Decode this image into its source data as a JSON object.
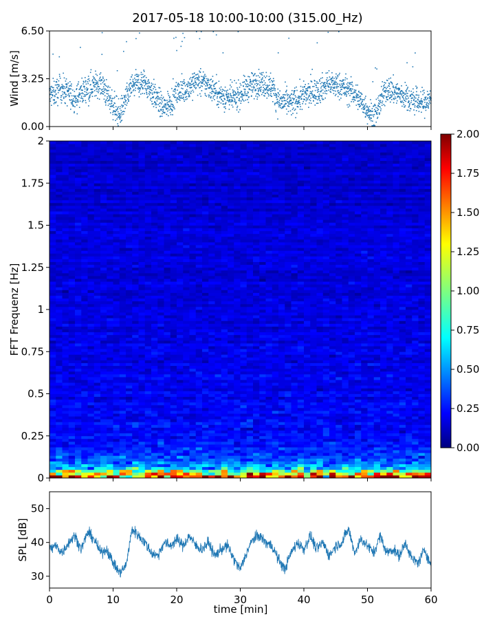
{
  "title": "2017-05-18 10:00-10:00 (315.00_Hz)",
  "colors": {
    "series": "#1f77b4",
    "axes": "#000000",
    "colormap": [
      "#00007f",
      "#0000ff",
      "#007fff",
      "#00ffff",
      "#7fff7f",
      "#ffff00",
      "#ff7f00",
      "#ff0000",
      "#7f0000"
    ]
  },
  "chart_data": [
    {
      "type": "scatter",
      "ylabel": "Wind [m/s]",
      "xlim": [
        0,
        60
      ],
      "ylim": [
        0,
        6.5
      ],
      "yticks": [
        0.0,
        3.25,
        6.5
      ],
      "ytick_labels": [
        "0.00",
        "3.25",
        "6.50"
      ],
      "xticks": [
        0,
        10,
        20,
        30,
        40,
        50,
        60
      ],
      "series": [
        {
          "x": [
            0,
            2,
            4,
            6,
            8,
            10,
            11,
            13,
            15,
            17,
            18,
            20,
            22,
            23,
            25,
            27,
            29,
            31,
            33,
            35,
            36,
            38,
            40,
            42,
            44,
            46,
            48,
            50,
            51,
            53,
            55,
            57,
            59,
            60
          ],
          "y": [
            2.1,
            2.6,
            1.9,
            2.7,
            2.9,
            1.5,
            0.8,
            2.8,
            3.0,
            1.8,
            1.2,
            2.2,
            2.7,
            3.1,
            2.8,
            2.1,
            1.9,
            2.6,
            3.0,
            2.7,
            1.7,
            1.6,
            2.1,
            2.4,
            2.9,
            2.7,
            2.2,
            1.2,
            0.6,
            2.6,
            2.2,
            1.8,
            1.6,
            1.9
          ]
        }
      ]
    },
    {
      "type": "heatmap",
      "ylabel": "FFT Frequenz [Hz]",
      "xlim": [
        0,
        60
      ],
      "ylim": [
        0,
        2
      ],
      "yticks": [
        0,
        0.25,
        0.5,
        0.75,
        1,
        1.25,
        1.5,
        1.75,
        2
      ],
      "ytick_labels": [
        "0",
        "0.25",
        "0.5",
        "0.75",
        "1",
        "1.25",
        "1.5",
        "1.75",
        "2"
      ],
      "xticks": [
        0,
        10,
        20,
        30,
        40,
        50,
        60
      ],
      "colorbar": {
        "range": [
          0,
          2
        ],
        "ticks": [
          0.0,
          0.25,
          0.5,
          0.75,
          1.0,
          1.25,
          1.5,
          1.75,
          2.0
        ],
        "tick_labels": [
          "0.00",
          "0.25",
          "0.50",
          "0.75",
          "1.00",
          "1.25",
          "1.50",
          "1.75",
          "2.00"
        ]
      },
      "freq_profile": {
        "freq": [
          0.0,
          0.02,
          0.05,
          0.08,
          0.1,
          0.15,
          0.25,
          0.5,
          1.0,
          1.5,
          2.0
        ],
        "mean_value": [
          1.8,
          1.2,
          0.75,
          0.5,
          0.42,
          0.33,
          0.26,
          0.22,
          0.19,
          0.17,
          0.15
        ]
      }
    },
    {
      "type": "line",
      "xlabel": "time [min]",
      "ylabel": "SPL [dB]",
      "xlim": [
        0,
        60
      ],
      "ylim": [
        26.5,
        55
      ],
      "yticks": [
        30,
        40,
        50
      ],
      "xticks": [
        0,
        10,
        20,
        30,
        40,
        50,
        60
      ],
      "xtick_labels": [
        "0",
        "10",
        "20",
        "30",
        "40",
        "50",
        "60"
      ],
      "series": [
        {
          "x": [
            0,
            1,
            2,
            3,
            4,
            5,
            6,
            7,
            8,
            9,
            10,
            11,
            12,
            13,
            14,
            15,
            16,
            17,
            18,
            19,
            20,
            21,
            22,
            23,
            24,
            25,
            26,
            27,
            28,
            29,
            30,
            31,
            32,
            33,
            34,
            35,
            36,
            37,
            38,
            39,
            40,
            41,
            42,
            43,
            44,
            45,
            46,
            47,
            48,
            49,
            50,
            51,
            52,
            53,
            54,
            55,
            56,
            57,
            58,
            59,
            60
          ],
          "y": [
            38,
            39,
            37,
            40,
            42,
            38,
            43,
            41,
            37,
            38,
            34,
            31,
            33,
            44,
            42,
            40,
            37,
            36,
            40,
            39,
            41,
            39,
            42,
            39,
            38,
            40,
            36,
            38,
            39,
            35,
            32,
            37,
            41,
            42,
            40,
            39,
            35,
            32,
            37,
            40,
            38,
            42,
            38,
            40,
            36,
            39,
            40,
            44,
            37,
            41,
            39,
            37,
            42,
            37,
            38,
            36,
            40,
            35,
            34,
            38,
            33
          ]
        }
      ]
    }
  ]
}
